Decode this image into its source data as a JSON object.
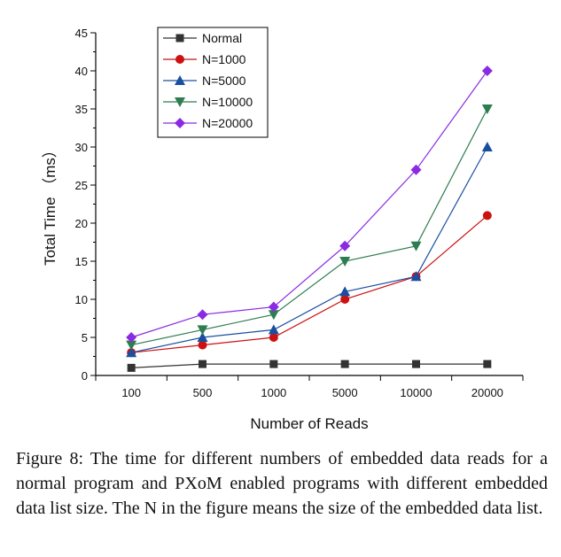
{
  "caption": "Figure 8: The time for different numbers of embedded data reads for a normal program and PXoM enabled programs with different embedded data list size. The N in the figure means the size of the embedded data list.",
  "chart_data": {
    "type": "line",
    "xlabel": "Number of Reads",
    "ylabel": "Total Time （ms）",
    "categories": [
      "100",
      "500",
      "1000",
      "5000",
      "10000",
      "20000"
    ],
    "ylim": [
      0,
      45
    ],
    "yticks": [
      0,
      5,
      10,
      15,
      20,
      25,
      30,
      35,
      40,
      45
    ],
    "grid": false,
    "legend_position": "top-left",
    "series": [
      {
        "name": "Normal",
        "color": "#333333",
        "marker": "square",
        "values": [
          1,
          1.5,
          1.5,
          1.5,
          1.5,
          1.5
        ]
      },
      {
        "name": "N=1000",
        "color": "#cc1111",
        "marker": "circle",
        "values": [
          3,
          4,
          5,
          10,
          13,
          21
        ]
      },
      {
        "name": "N=5000",
        "color": "#1a4fa0",
        "marker": "triangle-up",
        "values": [
          3,
          5,
          6,
          11,
          13,
          30
        ]
      },
      {
        "name": "N=10000",
        "color": "#2e7d50",
        "marker": "triangle-down",
        "values": [
          4,
          6,
          8,
          15,
          17,
          35
        ]
      },
      {
        "name": "N=20000",
        "color": "#8a2be2",
        "marker": "diamond",
        "values": [
          5,
          8,
          9,
          17,
          27,
          40
        ]
      }
    ]
  }
}
